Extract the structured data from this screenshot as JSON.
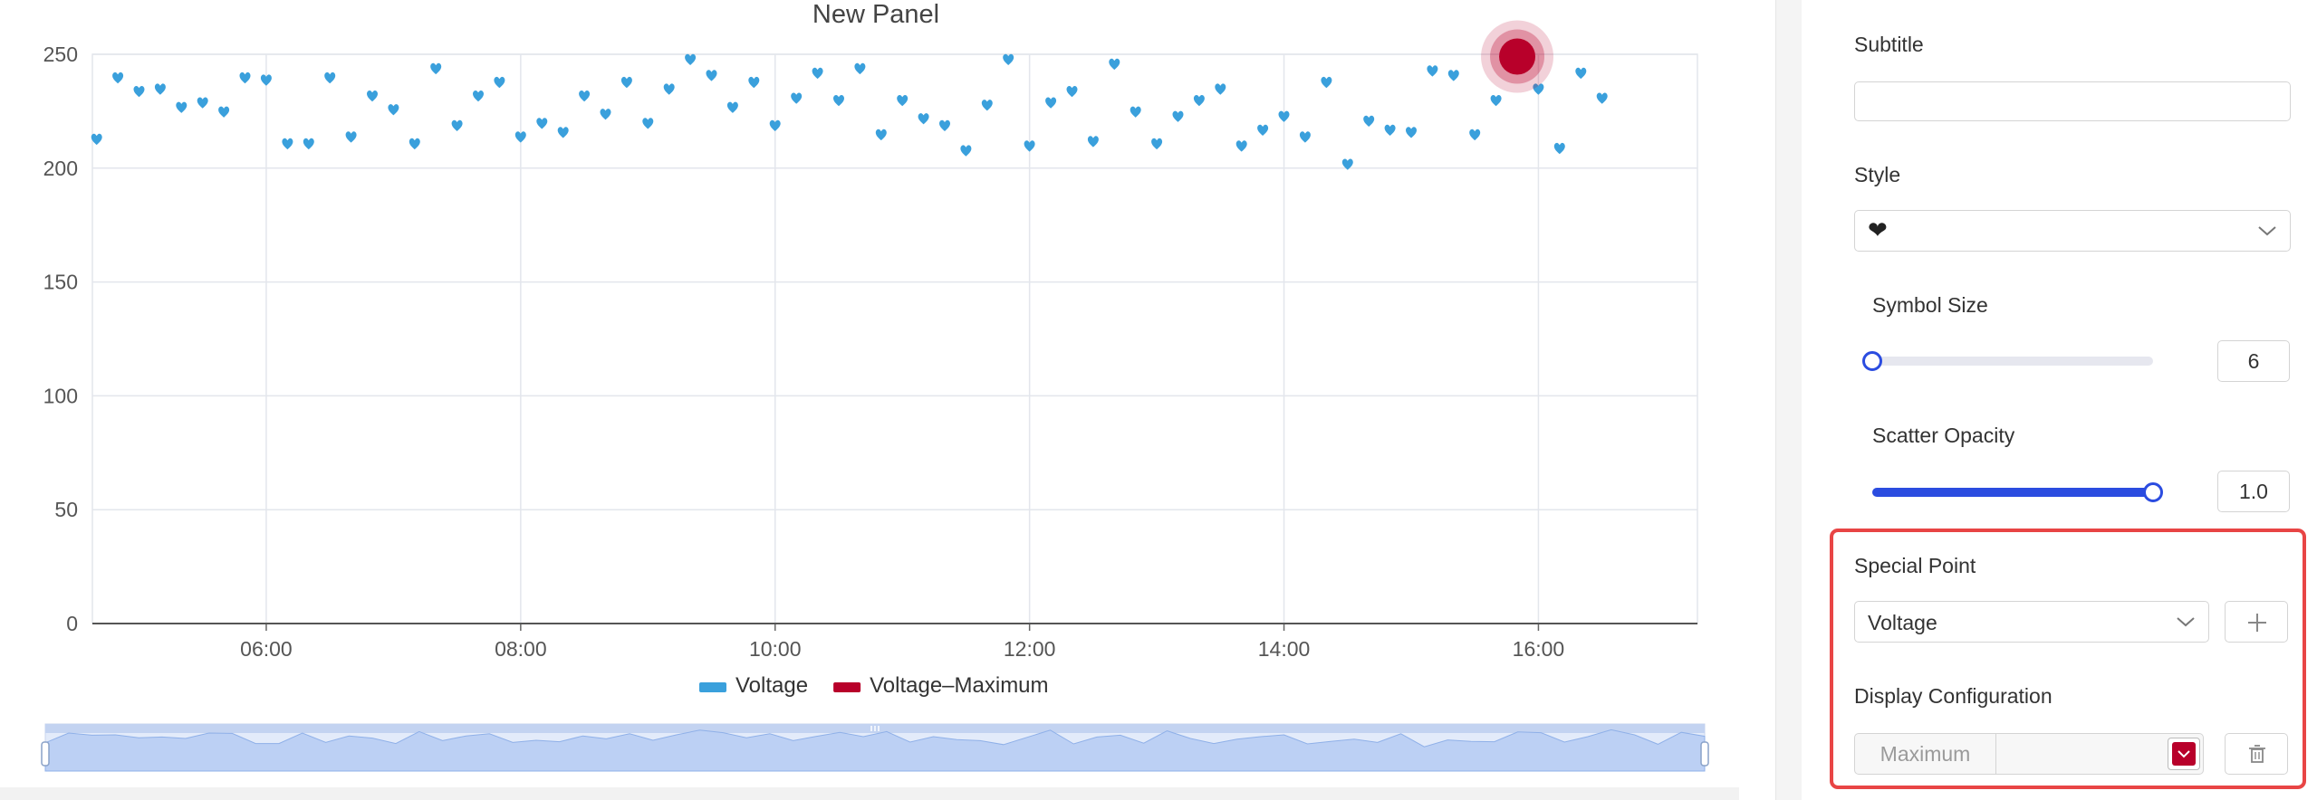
{
  "chart": {
    "title": "New Panel",
    "legend": [
      {
        "name": "Voltage",
        "color": "#3aa0dc"
      },
      {
        "name": "Voltage–Maximum",
        "color": "#b8002a"
      }
    ]
  },
  "chart_data": {
    "type": "scatter",
    "title": "New Panel",
    "xlabel": "",
    "ylabel": "",
    "ylim": [
      0,
      250
    ],
    "yticks": [
      "0",
      "50",
      "100",
      "150",
      "200",
      "250"
    ],
    "xticks": [
      "06:00",
      "08:00",
      "10:00",
      "12:00",
      "14:00",
      "16:00"
    ],
    "xlim": [
      "04:38",
      "17:15"
    ],
    "symbol": "heart",
    "grid": true,
    "legend_position": "bottom",
    "series": [
      {
        "name": "Voltage",
        "color": "#3aa0dc",
        "x": [
          "04:40",
          "04:50",
          "05:00",
          "05:10",
          "05:20",
          "05:30",
          "05:40",
          "05:50",
          "06:00",
          "06:10",
          "06:20",
          "06:30",
          "06:40",
          "06:50",
          "07:00",
          "07:10",
          "07:20",
          "07:30",
          "07:40",
          "07:50",
          "08:00",
          "08:10",
          "08:20",
          "08:30",
          "08:40",
          "08:50",
          "09:00",
          "09:10",
          "09:20",
          "09:30",
          "09:40",
          "09:50",
          "10:00",
          "10:10",
          "10:20",
          "10:30",
          "10:40",
          "10:50",
          "11:00",
          "11:10",
          "11:20",
          "11:30",
          "11:40",
          "11:50",
          "12:00",
          "12:10",
          "12:20",
          "12:30",
          "12:40",
          "12:50",
          "13:00",
          "13:10",
          "13:20",
          "13:30",
          "13:40",
          "13:50",
          "14:00",
          "14:10",
          "14:20",
          "14:30",
          "14:40",
          "14:50",
          "15:00",
          "15:10",
          "15:20",
          "15:30",
          "15:40",
          "15:50",
          "16:00",
          "16:10",
          "16:20",
          "16:30"
        ],
        "values": [
          213,
          240,
          234,
          235,
          227,
          229,
          225,
          240,
          239,
          211,
          211,
          240,
          214,
          232,
          226,
          211,
          244,
          219,
          232,
          238,
          214,
          220,
          216,
          232,
          224,
          238,
          220,
          235,
          248,
          241,
          227,
          238,
          219,
          231,
          242,
          230,
          244,
          215,
          230,
          222,
          219,
          208,
          228,
          248,
          210,
          229,
          234,
          212,
          246,
          225,
          211,
          223,
          230,
          235,
          210,
          217,
          223,
          214,
          238,
          202,
          221,
          217,
          216,
          243,
          241,
          215,
          230,
          249,
          235,
          209,
          242,
          231
        ]
      },
      {
        "name": "Voltage–Maximum",
        "color": "#b8002a",
        "x": [
          "15:50"
        ],
        "values": [
          249
        ]
      }
    ]
  },
  "panel": {
    "subtitle_label": "Subtitle",
    "subtitle_value": "",
    "style_label": "Style",
    "style_value": "❤",
    "symbol_size_label": "Symbol Size",
    "symbol_size_value": "6",
    "symbol_size_fraction": 0.0,
    "scatter_opacity_label": "Scatter Opacity",
    "scatter_opacity_value": "1.0",
    "scatter_opacity_fraction": 1.0,
    "special_point_label": "Special Point",
    "special_point_value": "Voltage",
    "display_config_label": "Display Configuration",
    "display_config_name": "Maximum",
    "display_config_color": "#b8002a",
    "accent_color": "#2b4ce0",
    "highlight_color": "#e84545"
  },
  "icons": {
    "add": "plus-icon",
    "delete": "trash-icon",
    "dropdown": "chevron-down-icon"
  }
}
